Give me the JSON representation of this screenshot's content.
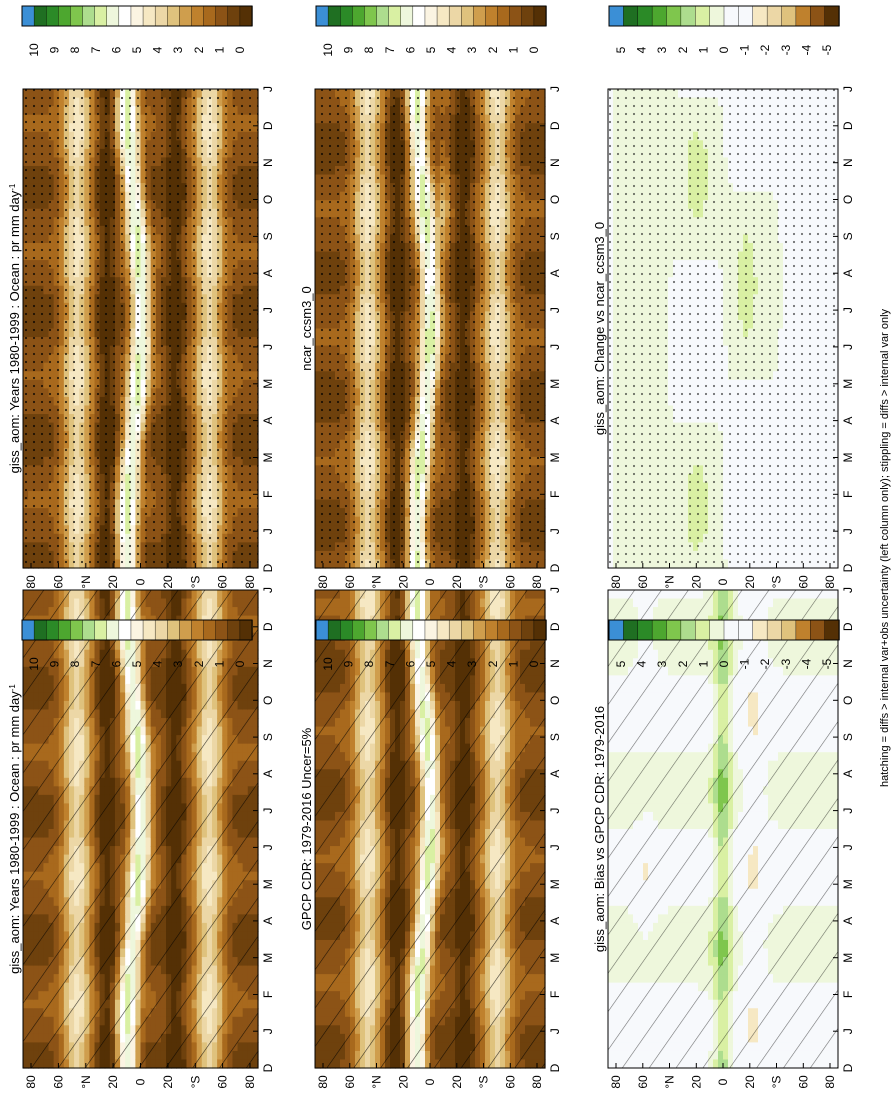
{
  "footnote": "hatching = diffs > internal var+obs uncertainty (left column only); stippling = diffs > internal var only",
  "colors": {
    "abs_scale": [
      "#543005",
      "#6e410d",
      "#8c5316",
      "#a8691d",
      "#bf812d",
      "#cf9e4d",
      "#dfc27d",
      "#ecd7a6",
      "#f6e8c3",
      "#fbf4e2",
      "#ffffff",
      "#eef7dc",
      "#d9f0a3",
      "#addd8e",
      "#7fc64d",
      "#4da72f",
      "#2b8a27",
      "#1f6f22",
      "#3b8fd6"
    ],
    "diff_scale": [
      "#543005",
      "#8c5316",
      "#bf812d",
      "#dfc27d",
      "#ecd7a6",
      "#f6e8c3",
      "#f7f9fc",
      "#f7f9fc",
      "#eef7dc",
      "#d9f0a3",
      "#addd8e",
      "#7fc64d",
      "#4da72f",
      "#2b8a27",
      "#1f6f22",
      "#3b8fd6"
    ]
  },
  "colorbars": {
    "abs_ticks": [
      "10",
      "9",
      "8",
      "7",
      "6",
      "5",
      "4",
      "3",
      "2",
      "1",
      "0"
    ],
    "diff_ticks": [
      "5",
      "4",
      "3",
      "2",
      "1",
      "0",
      "-1",
      "-2",
      "-3",
      "-4",
      "-5"
    ]
  },
  "axes": {
    "lat_ticks": [
      "80",
      "60",
      "°N",
      "20",
      "0",
      "20",
      "°S",
      "60",
      "80"
    ],
    "month_ticks": [
      "D",
      "J",
      "F",
      "M",
      "A",
      "M",
      "J",
      "J",
      "A",
      "S",
      "O",
      "N",
      "D",
      "J"
    ]
  },
  "panels": [
    {
      "id": "left-top",
      "title": "giss_aom: Years 1980-1999 : Ocean : pr mm day",
      "title_sup": "-1",
      "kind": "abs",
      "pattern": "hatch"
    },
    {
      "id": "right-top",
      "title": "giss_aom: Years 1980-1999 : Ocean : pr mm day",
      "title_sup": "-1",
      "kind": "abs",
      "pattern": "stipple"
    },
    {
      "id": "left-mid",
      "title": "GPCP CDR: 1979-2016 Uncer=5%",
      "title_sup": "",
      "kind": "abs",
      "pattern": "hatch"
    },
    {
      "id": "right-mid",
      "title": "ncar_ccsm3_0",
      "title_sup": "",
      "kind": "abs",
      "pattern": "stipple"
    },
    {
      "id": "left-bottom",
      "title": "giss_aom: Bias vs GPCP CDR: 1979-2016",
      "title_sup": "",
      "kind": "diff",
      "pattern": "hatch"
    },
    {
      "id": "right-bottom",
      "title": "giss_aom: Change vs ncar_ccsm3_0",
      "title_sup": "",
      "kind": "diff",
      "pattern": "stipple"
    }
  ],
  "chart_data": [
    {
      "type": "heatmap",
      "title": "giss_aom: Years 1980-1999 : Ocean : pr mm day-1",
      "x": "month (D..J)",
      "y": "latitude (80°N..80°S)",
      "colorbar_range": [
        0,
        10
      ],
      "units": "mm day-1",
      "overlay": "hatching"
    },
    {
      "type": "heatmap",
      "title": "giss_aom: Years 1980-1999 : Ocean : pr mm day-1",
      "x": "month (D..J)",
      "y": "latitude (80°N..80°S)",
      "colorbar_range": [
        0,
        10
      ],
      "units": "mm day-1",
      "overlay": "stippling"
    },
    {
      "type": "heatmap",
      "title": "GPCP CDR: 1979-2016 Uncer=5%",
      "x": "month (D..J)",
      "y": "latitude (80°N..80°S)",
      "colorbar_range": [
        0,
        10
      ],
      "units": "mm day-1",
      "overlay": "hatching"
    },
    {
      "type": "heatmap",
      "title": "ncar_ccsm3_0",
      "x": "month (D..J)",
      "y": "latitude (80°N..80°S)",
      "colorbar_range": [
        0,
        10
      ],
      "units": "mm day-1",
      "overlay": "stippling"
    },
    {
      "type": "heatmap",
      "title": "giss_aom: Bias vs GPCP CDR: 1979-2016",
      "x": "month (D..J)",
      "y": "latitude (80°N..80°S)",
      "colorbar_range": [
        -5,
        5
      ],
      "units": "mm day-1",
      "overlay": "hatching"
    },
    {
      "type": "heatmap",
      "title": "giss_aom: Change vs ncar_ccsm3_0",
      "x": "month (D..J)",
      "y": "latitude (80°N..80°S)",
      "colorbar_range": [
        -5,
        5
      ],
      "units": "mm day-1",
      "overlay": "stippling"
    }
  ]
}
